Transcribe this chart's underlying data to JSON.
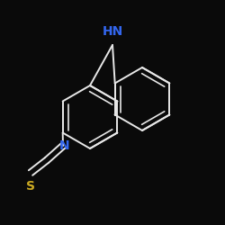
{
  "bg_color": "#0a0a0a",
  "line_color": "#e8e8e8",
  "hn_color": "#3366ee",
  "n_color": "#3366ee",
  "s_color": "#ccaa22",
  "HN_label": "HN",
  "N_label": "N",
  "S_label": "S",
  "figsize": [
    2.5,
    2.5
  ],
  "dpi": 100,
  "lw": 1.4
}
